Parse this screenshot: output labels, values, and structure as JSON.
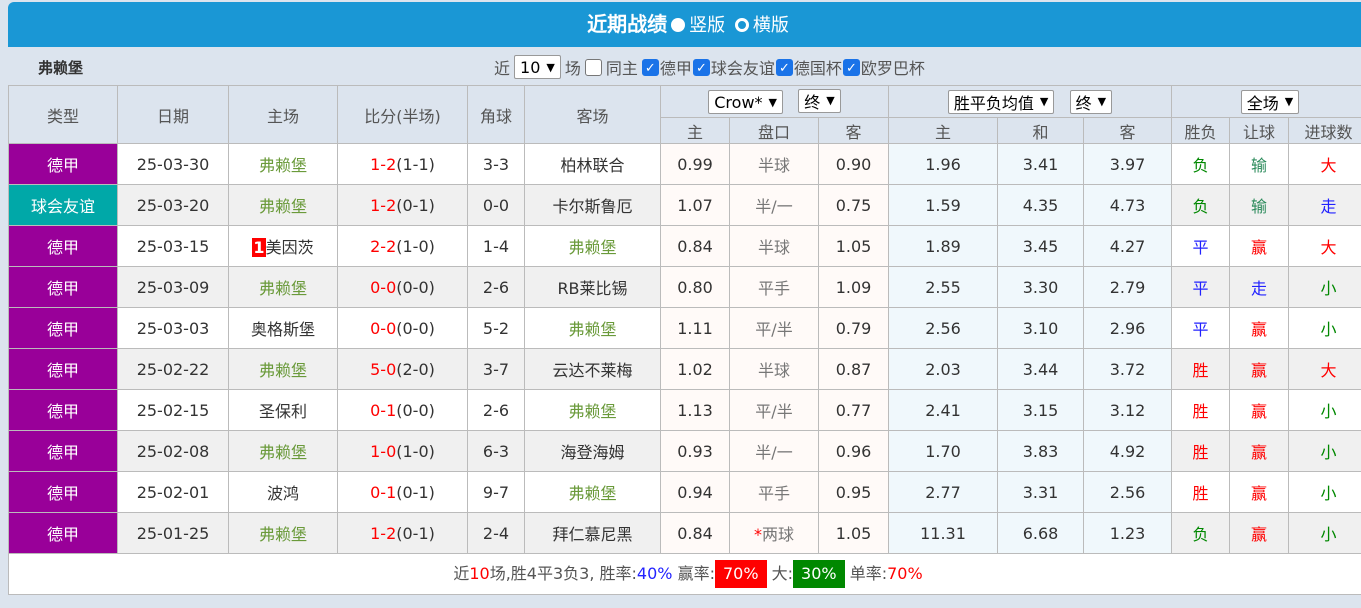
{
  "header": {
    "title": "近期战绩",
    "opt_vertical": "竖版",
    "opt_horizontal": "横版"
  },
  "filter": {
    "team": "弗赖堡",
    "near": "近",
    "count": "10",
    "games": "场",
    "same_home": "同主",
    "leagues": [
      "德甲",
      "球会友谊",
      "德国杯",
      "欧罗巴杯"
    ]
  },
  "columns": {
    "type": "类型",
    "date": "日期",
    "home": "主场",
    "score": "比分(半场)",
    "corner": "角球",
    "away": "客场",
    "company": "Crow*",
    "final1": "终",
    "odds_type": "胜平负均值",
    "final2": "终",
    "period": "全场",
    "h": "主",
    "line": "盘口",
    "a": "客",
    "h2": "主",
    "d": "和",
    "a2": "客",
    "res": "胜负",
    "hcp": "让球",
    "ou": "进球数"
  },
  "colors": {
    "德甲": "#990099",
    "球会友谊": "#00a8a8"
  },
  "rows": [
    {
      "type": "德甲",
      "date": "25-03-30",
      "home": "弗赖堡",
      "ft": "1-2",
      "ht": "(1-1)",
      "corner": "3-3",
      "away": "柏林联合",
      "h": "0.99",
      "line": "半球",
      "a": "0.90",
      "o1": "1.96",
      "o2": "3.41",
      "o3": "3.97",
      "res": "负",
      "hcp": "输",
      "ou": "大"
    },
    {
      "type": "球会友谊",
      "date": "25-03-20",
      "home": "弗赖堡",
      "ft": "1-2",
      "ht": "(0-1)",
      "corner": "0-0",
      "away": "卡尔斯鲁厄",
      "h": "1.07",
      "line": "半/一",
      "a": "0.75",
      "o1": "1.59",
      "o2": "4.35",
      "o3": "4.73",
      "res": "负",
      "hcp": "输",
      "ou": "走"
    },
    {
      "type": "德甲",
      "date": "25-03-15",
      "home": "美因茨",
      "badge": "1",
      "ft": "2-2",
      "ht": "(1-0)",
      "corner": "1-4",
      "away": "弗赖堡",
      "h": "0.84",
      "line": "半球",
      "a": "1.05",
      "o1": "1.89",
      "o2": "3.45",
      "o3": "4.27",
      "res": "平",
      "hcp": "赢",
      "ou": "大"
    },
    {
      "type": "德甲",
      "date": "25-03-09",
      "home": "弗赖堡",
      "ft": "0-0",
      "ht": "(0-0)",
      "corner": "2-6",
      "away": "RB莱比锡",
      "h": "0.80",
      "line": "平手",
      "a": "1.09",
      "o1": "2.55",
      "o2": "3.30",
      "o3": "2.79",
      "res": "平",
      "hcp": "走",
      "ou": "小"
    },
    {
      "type": "德甲",
      "date": "25-03-03",
      "home": "奥格斯堡",
      "ft": "0-0",
      "ht": "(0-0)",
      "corner": "5-2",
      "away": "弗赖堡",
      "h": "1.11",
      "line": "平/半",
      "a": "0.79",
      "o1": "2.56",
      "o2": "3.10",
      "o3": "2.96",
      "res": "平",
      "hcp": "赢",
      "ou": "小"
    },
    {
      "type": "德甲",
      "date": "25-02-22",
      "home": "弗赖堡",
      "ft": "5-0",
      "ht": "(2-0)",
      "corner": "3-7",
      "away": "云达不莱梅",
      "h": "1.02",
      "line": "半球",
      "a": "0.87",
      "o1": "2.03",
      "o2": "3.44",
      "o3": "3.72",
      "res": "胜",
      "hcp": "赢",
      "ou": "大"
    },
    {
      "type": "德甲",
      "date": "25-02-15",
      "home": "圣保利",
      "ft": "0-1",
      "ht": "(0-0)",
      "corner": "2-6",
      "away": "弗赖堡",
      "h": "1.13",
      "line": "平/半",
      "a": "0.77",
      "o1": "2.41",
      "o2": "3.15",
      "o3": "3.12",
      "res": "胜",
      "hcp": "赢",
      "ou": "小"
    },
    {
      "type": "德甲",
      "date": "25-02-08",
      "home": "弗赖堡",
      "ft": "1-0",
      "ht": "(1-0)",
      "corner": "6-3",
      "away": "海登海姆",
      "h": "0.93",
      "line": "半/一",
      "a": "0.96",
      "o1": "1.70",
      "o2": "3.83",
      "o3": "4.92",
      "res": "胜",
      "hcp": "赢",
      "ou": "小"
    },
    {
      "type": "德甲",
      "date": "25-02-01",
      "home": "波鸿",
      "ft": "0-1",
      "ht": "(0-1)",
      "corner": "9-7",
      "away": "弗赖堡",
      "h": "0.94",
      "line": "平手",
      "a": "0.95",
      "o1": "2.77",
      "o2": "3.31",
      "o3": "2.56",
      "res": "胜",
      "hcp": "赢",
      "ou": "小"
    },
    {
      "type": "德甲",
      "date": "25-01-25",
      "home": "弗赖堡",
      "ft": "1-2",
      "ht": "(0-1)",
      "corner": "2-4",
      "away": "拜仁慕尼黑",
      "h": "0.84",
      "line_star": "*",
      "line": "两球",
      "a": "1.05",
      "o1": "11.31",
      "o2": "6.68",
      "o3": "1.23",
      "res": "负",
      "hcp": "赢",
      "ou": "小"
    }
  ],
  "summary": {
    "p1": "近",
    "n": "10",
    "p2": "场,胜4平3负3, 胜率:",
    "win_rate": "40%",
    "p3": "赢率:",
    "hcp_rate": "70%",
    "p4": "大:",
    "over_rate": "30%",
    "p5": "单率:",
    "odd_rate": "70%"
  }
}
